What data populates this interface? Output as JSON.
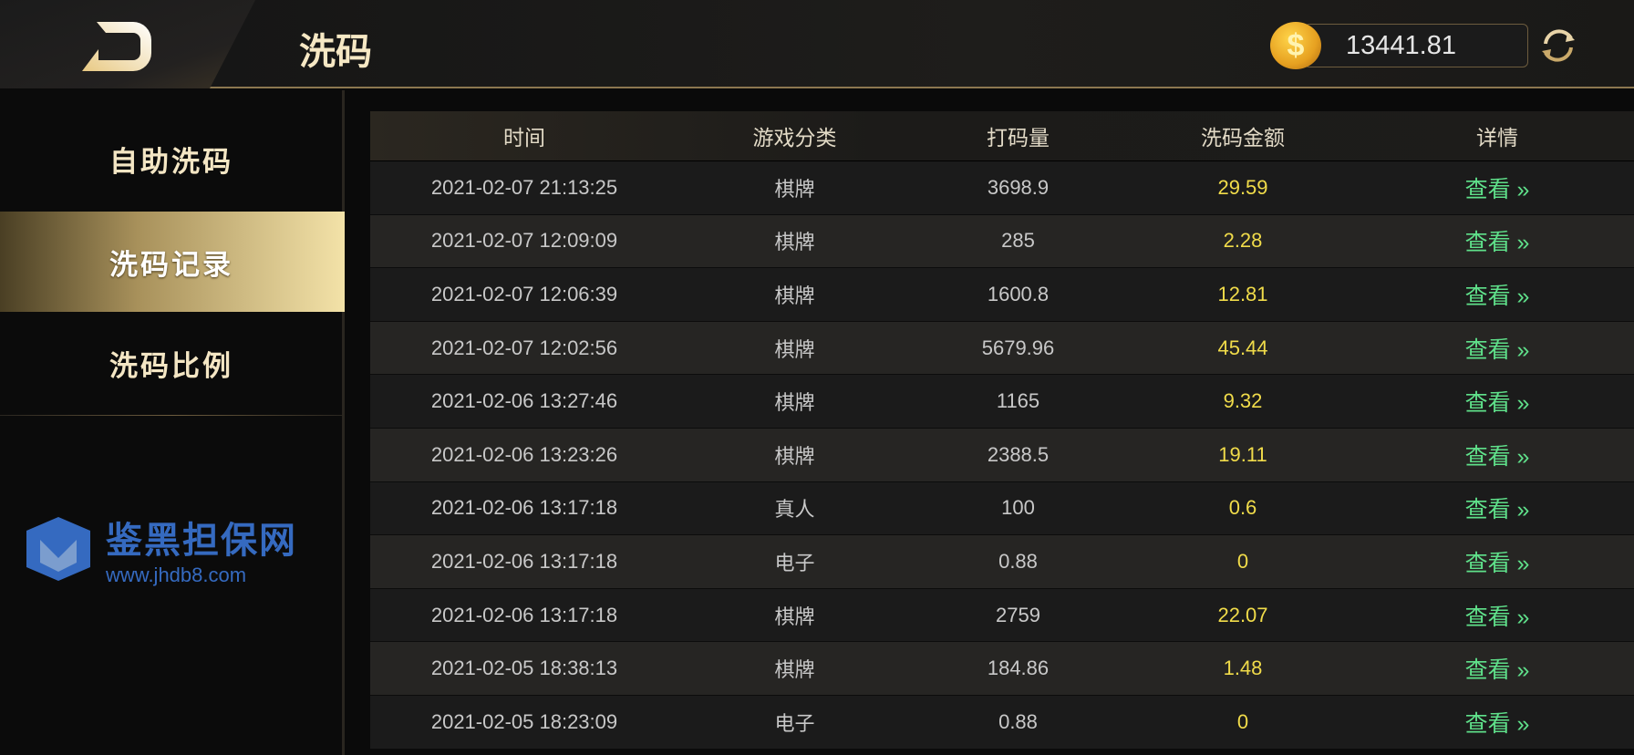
{
  "header": {
    "title": "洗码",
    "balance": "13441.81",
    "coin_icon": "$"
  },
  "sidebar": {
    "items": [
      {
        "label": "自助洗码"
      },
      {
        "label": "洗码记录",
        "active": true
      },
      {
        "label": "洗码比例"
      }
    ]
  },
  "table": {
    "headers": [
      "时间",
      "游戏分类",
      "打码量",
      "洗码金额",
      "详情"
    ],
    "rows": [
      {
        "time": "2021-02-07 21:13:25",
        "category": "棋牌",
        "bet": "3698.9",
        "amount": "29.59",
        "detail": "查看 »"
      },
      {
        "time": "2021-02-07 12:09:09",
        "category": "棋牌",
        "bet": "285",
        "amount": "2.28",
        "detail": "查看 »"
      },
      {
        "time": "2021-02-07 12:06:39",
        "category": "棋牌",
        "bet": "1600.8",
        "amount": "12.81",
        "detail": "查看 »"
      },
      {
        "time": "2021-02-07 12:02:56",
        "category": "棋牌",
        "bet": "5679.96",
        "amount": "45.44",
        "detail": "查看 »"
      },
      {
        "time": "2021-02-06 13:27:46",
        "category": "棋牌",
        "bet": "1165",
        "amount": "9.32",
        "detail": "查看 »"
      },
      {
        "time": "2021-02-06 13:23:26",
        "category": "棋牌",
        "bet": "2388.5",
        "amount": "19.11",
        "detail": "查看 »"
      },
      {
        "time": "2021-02-06 13:17:18",
        "category": "真人",
        "bet": "100",
        "amount": "0.6",
        "detail": "查看 »"
      },
      {
        "time": "2021-02-06 13:17:18",
        "category": "电子",
        "bet": "0.88",
        "amount": "0",
        "detail": "查看 »"
      },
      {
        "time": "2021-02-06 13:17:18",
        "category": "棋牌",
        "bet": "2759",
        "amount": "22.07",
        "detail": "查看 »"
      },
      {
        "time": "2021-02-05 18:38:13",
        "category": "棋牌",
        "bet": "184.86",
        "amount": "1.48",
        "detail": "查看 »"
      },
      {
        "time": "2021-02-05 18:23:09",
        "category": "电子",
        "bet": "0.88",
        "amount": "0",
        "detail": "查看 »"
      }
    ]
  },
  "watermark": {
    "name": "鉴黑担保网",
    "url": "www.jhdb8.com"
  },
  "colors": {
    "accent": "#f6e8c4",
    "amount": "#f1dc4a",
    "link": "#5fe08a"
  }
}
